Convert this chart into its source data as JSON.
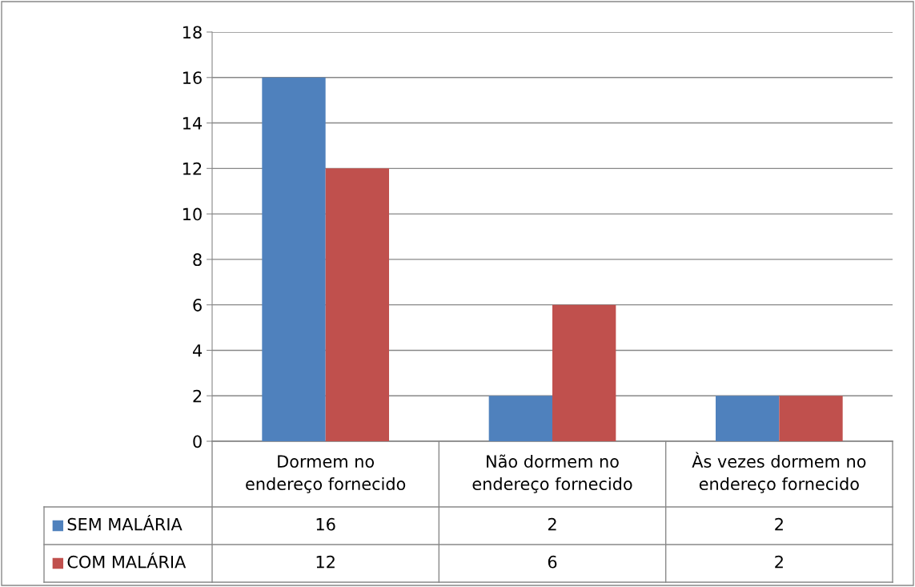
{
  "chart_data": {
    "type": "bar",
    "categories": [
      "Dormem no endereço fornecido",
      "Não dormem no endereço fornecido",
      "Às vezes dormem no endereço fornecido"
    ],
    "series": [
      {
        "name": "SEM MALÁRIA",
        "color": "#4f81bd",
        "values": [
          16,
          2,
          2
        ]
      },
      {
        "name": "COM MALÁRIA",
        "color": "#c0504d",
        "values": [
          12,
          6,
          2
        ]
      }
    ],
    "ylim": [
      0,
      18
    ],
    "yticks": [
      0,
      2,
      4,
      6,
      8,
      10,
      12,
      14,
      16,
      18
    ],
    "grid": "y",
    "legend": "bottom",
    "data_labels": true
  }
}
